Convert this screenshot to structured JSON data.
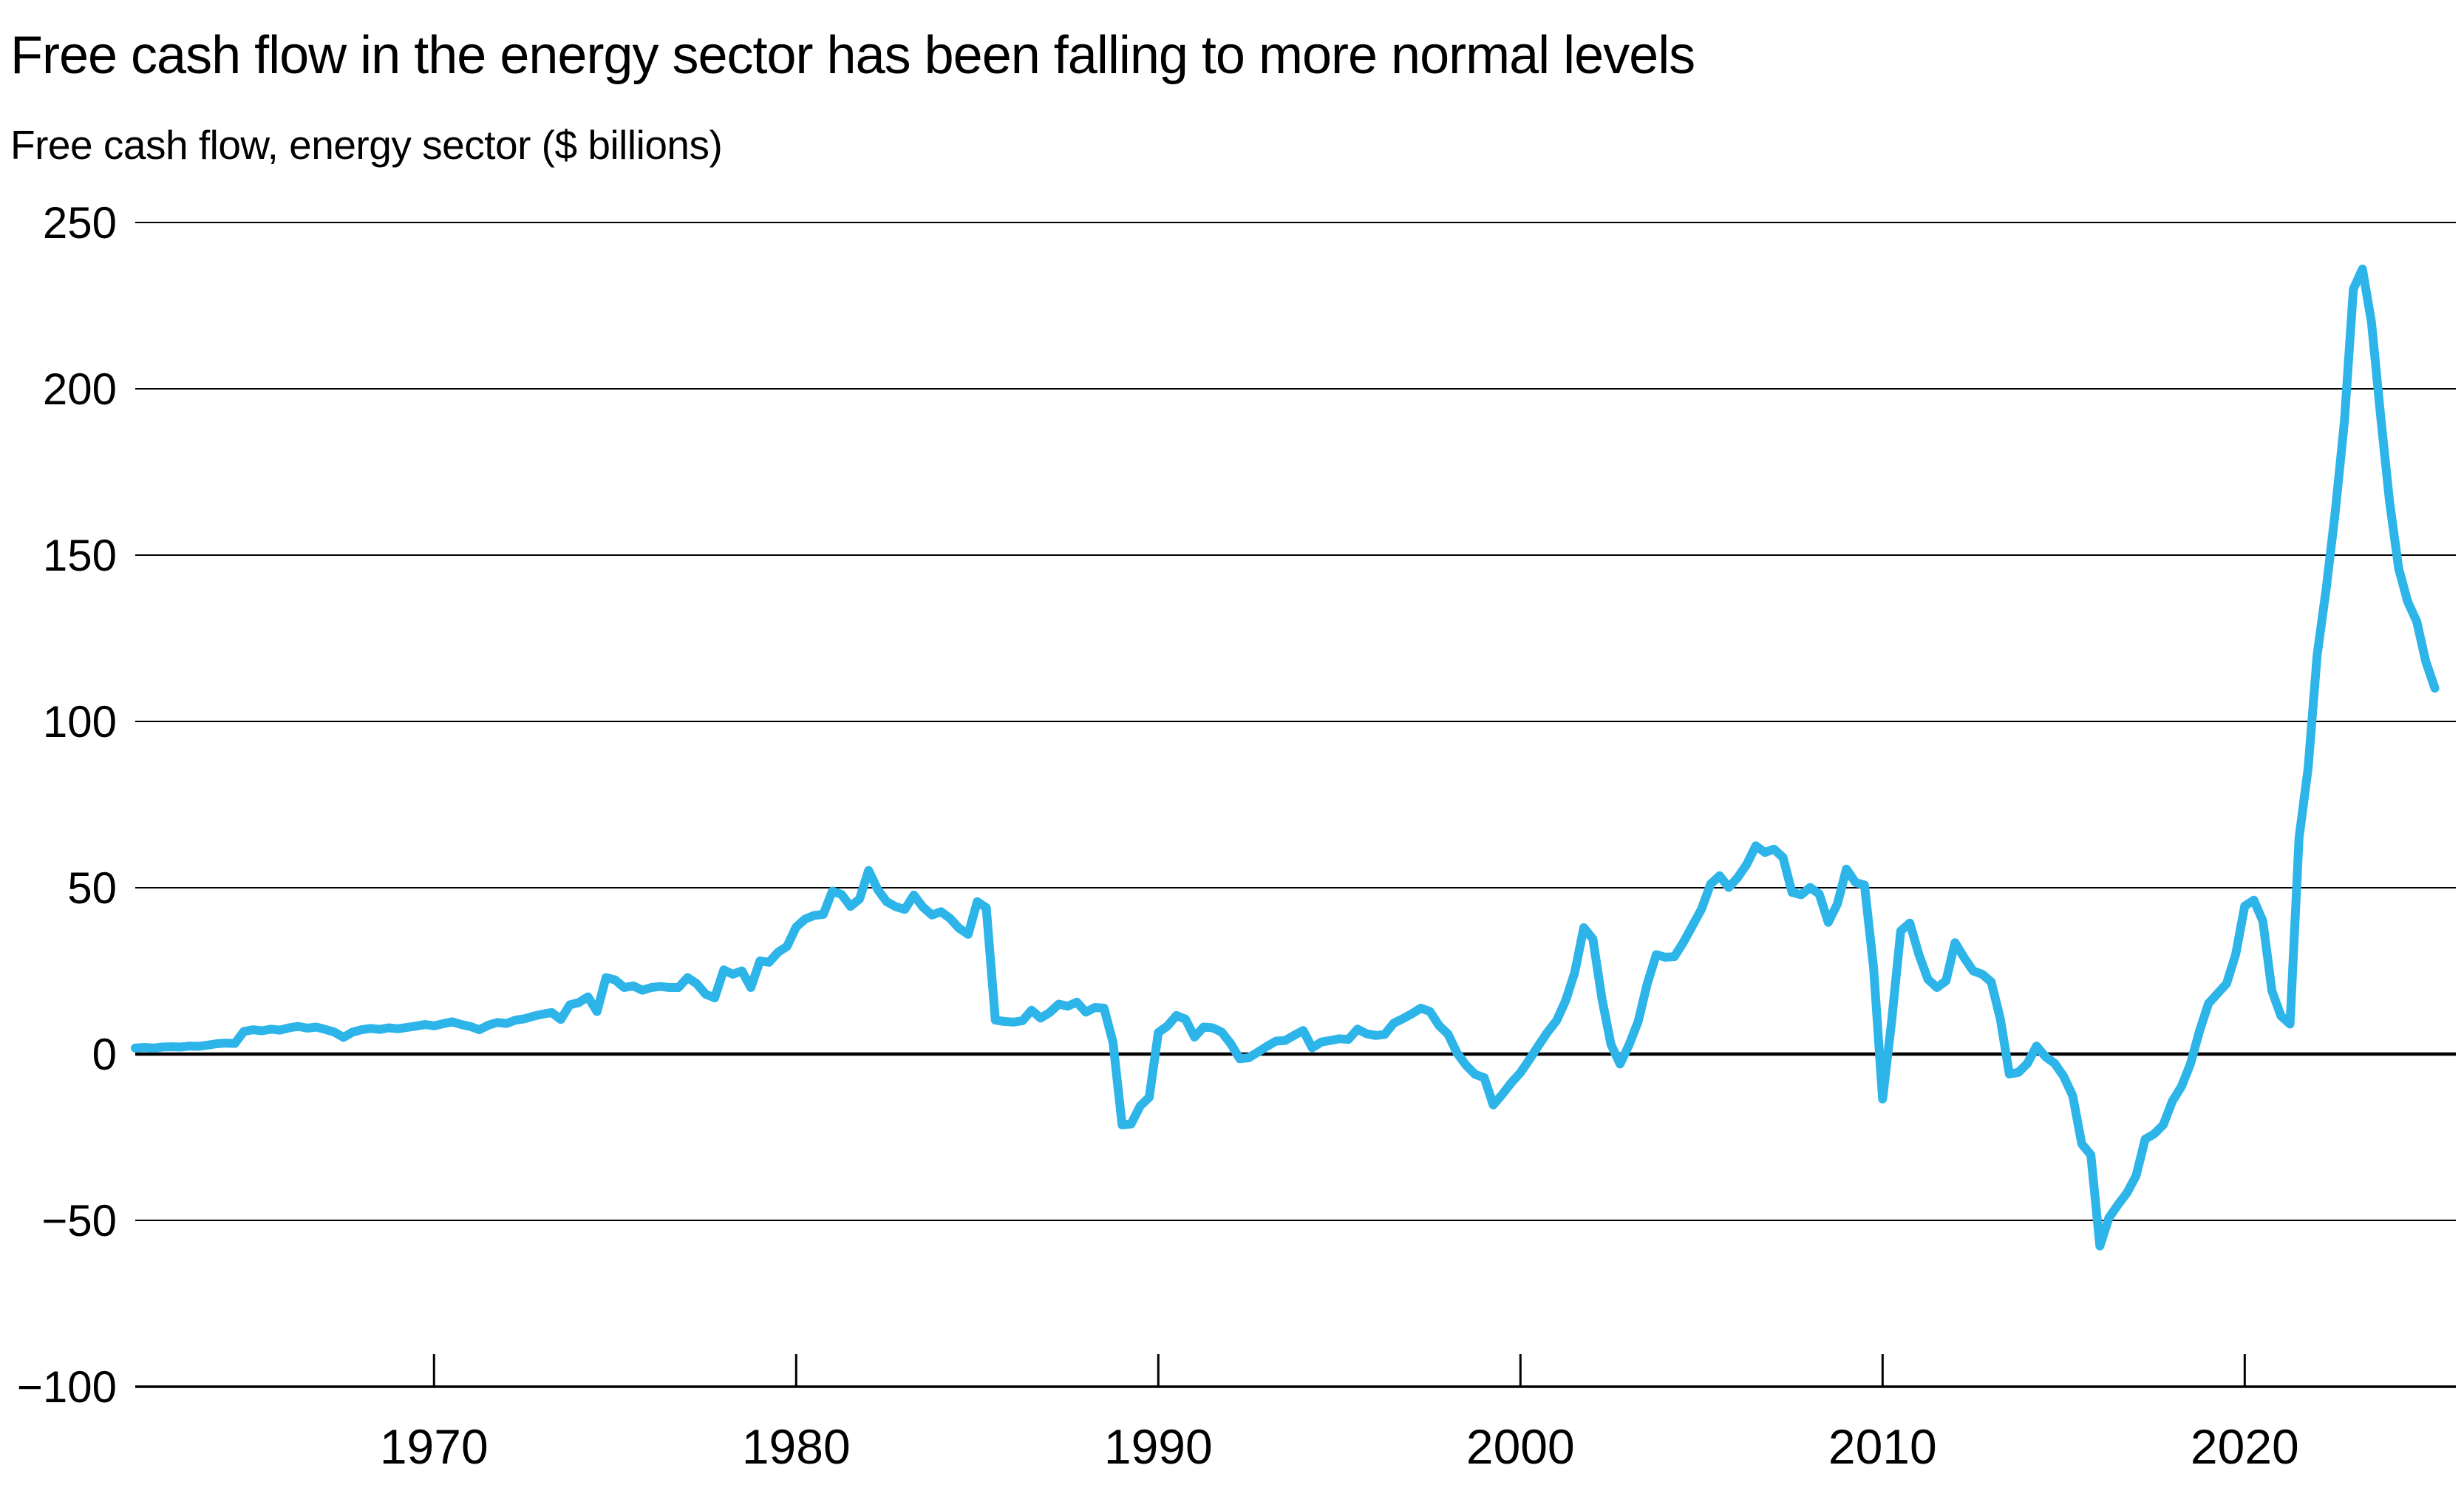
{
  "chart_data": {
    "type": "line",
    "title": "Free cash flow in the energy sector has been falling to more normal levels",
    "subtitle": "Free cash flow, energy sector ($ billions)",
    "series_name": "Free cash flow, energy sector ($ billions)",
    "line_color": "#2db4e9",
    "background_color": "#ffffff",
    "axis_color": "#000000",
    "grid": "horizontal",
    "legend": "none",
    "xlabel": "",
    "ylabel": "$ billions",
    "xlim": [
      1961.75,
      2025.83
    ],
    "ylim": [
      -100,
      250
    ],
    "y_ticks": [
      250,
      200,
      150,
      100,
      50,
      0,
      -50,
      -100
    ],
    "y_tick_labels": [
      "250",
      "200",
      "150",
      "100",
      "50",
      "0",
      "−50",
      "−100"
    ],
    "x_ticks": [
      1970,
      1980,
      1990,
      2000,
      2010,
      2020
    ],
    "x_tick_labels": [
      "1970",
      "1980",
      "1990",
      "2000",
      "2010",
      "2020"
    ],
    "x": [
      1961.75,
      1962.0,
      1962.25,
      1962.5,
      1962.75,
      1963.0,
      1963.25,
      1963.5,
      1963.75,
      1964.0,
      1964.25,
      1964.5,
      1964.75,
      1965.0,
      1965.25,
      1965.5,
      1965.75,
      1966.0,
      1966.25,
      1966.5,
      1966.75,
      1967.0,
      1967.25,
      1967.5,
      1967.75,
      1968.0,
      1968.25,
      1968.5,
      1968.75,
      1969.0,
      1969.25,
      1969.5,
      1969.75,
      1970.0,
      1970.25,
      1970.5,
      1970.75,
      1971.0,
      1971.25,
      1971.5,
      1971.75,
      1972.0,
      1972.25,
      1972.5,
      1972.75,
      1973.0,
      1973.25,
      1973.5,
      1973.75,
      1974.0,
      1974.25,
      1974.5,
      1974.75,
      1975.0,
      1975.25,
      1975.5,
      1975.75,
      1976.0,
      1976.25,
      1976.5,
      1976.75,
      1977.0,
      1977.25,
      1977.5,
      1977.75,
      1978.0,
      1978.25,
      1978.5,
      1978.75,
      1979.0,
      1979.25,
      1979.5,
      1979.75,
      1980.0,
      1980.25,
      1980.5,
      1980.75,
      1981.0,
      1981.25,
      1981.5,
      1981.75,
      1982.0,
      1982.25,
      1982.5,
      1982.75,
      1983.0,
      1983.25,
      1983.5,
      1983.75,
      1984.0,
      1984.25,
      1984.5,
      1984.75,
      1985.0,
      1985.25,
      1985.5,
      1985.75,
      1986.0,
      1986.25,
      1986.5,
      1986.75,
      1987.0,
      1987.25,
      1987.5,
      1987.75,
      1988.0,
      1988.25,
      1988.5,
      1988.75,
      1989.0,
      1989.25,
      1989.5,
      1989.75,
      1990.0,
      1990.25,
      1990.5,
      1990.75,
      1991.0,
      1991.25,
      1991.5,
      1991.75,
      1992.0,
      1992.25,
      1992.5,
      1992.75,
      1993.0,
      1993.25,
      1993.5,
      1993.75,
      1994.0,
      1994.25,
      1994.5,
      1994.75,
      1995.0,
      1995.25,
      1995.5,
      1995.75,
      1996.0,
      1996.25,
      1996.5,
      1996.75,
      1997.0,
      1997.25,
      1997.5,
      1997.75,
      1998.0,
      1998.25,
      1998.5,
      1998.75,
      1999.0,
      1999.25,
      1999.5,
      1999.75,
      2000.0,
      2000.25,
      2000.5,
      2000.75,
      2001.0,
      2001.25,
      2001.5,
      2001.75,
      2002.0,
      2002.25,
      2002.5,
      2002.75,
      2003.0,
      2003.25,
      2003.5,
      2003.75,
      2004.0,
      2004.25,
      2004.5,
      2004.75,
      2005.0,
      2005.25,
      2005.5,
      2005.75,
      2006.0,
      2006.25,
      2006.5,
      2006.75,
      2007.0,
      2007.25,
      2007.5,
      2007.75,
      2008.0,
      2008.25,
      2008.5,
      2008.75,
      2009.0,
      2009.25,
      2009.5,
      2009.75,
      2010.0,
      2010.25,
      2010.5,
      2010.75,
      2011.0,
      2011.25,
      2011.5,
      2011.75,
      2012.0,
      2012.25,
      2012.5,
      2012.75,
      2013.0,
      2013.25,
      2013.5,
      2013.75,
      2014.0,
      2014.25,
      2014.5,
      2014.75,
      2015.0,
      2015.25,
      2015.5,
      2015.75,
      2016.0,
      2016.25,
      2016.5,
      2016.75,
      2017.0,
      2017.25,
      2017.5,
      2017.75,
      2018.0,
      2018.25,
      2018.5,
      2018.75,
      2019.0,
      2019.25,
      2019.5,
      2019.75,
      2020.0,
      2020.25,
      2020.5,
      2020.75,
      2021.0,
      2021.25,
      2021.5,
      2021.75,
      2022.0,
      2022.25,
      2022.5,
      2022.75,
      2023.0,
      2023.25,
      2023.5,
      2023.75,
      2024.0,
      2024.25,
      2024.5,
      2024.75,
      2025.0,
      2025.25
    ],
    "values": [
      1.8,
      2.0,
      1.8,
      2.1,
      2.2,
      2.1,
      2.4,
      2.3,
      2.7,
      3.1,
      3.3,
      3.2,
      6.8,
      7.3,
      7.0,
      7.5,
      7.2,
      7.9,
      8.3,
      7.8,
      8.1,
      7.4,
      6.6,
      5.0,
      6.6,
      7.3,
      7.7,
      7.4,
      7.9,
      7.6,
      8.0,
      8.4,
      8.9,
      8.5,
      9.1,
      9.7,
      8.9,
      8.3,
      7.3,
      8.7,
      9.5,
      9.2,
      10.2,
      10.6,
      11.4,
      12.0,
      12.5,
      10.4,
      14.8,
      15.5,
      17.2,
      12.8,
      23.0,
      22.3,
      20.0,
      20.5,
      19.2,
      20.0,
      20.3,
      20.0,
      20.0,
      23.0,
      21.2,
      18.0,
      16.9,
      25.3,
      24.0,
      25.0,
      20.0,
      28.0,
      27.6,
      30.6,
      32.4,
      38.2,
      40.6,
      41.7,
      42.0,
      49.0,
      48.0,
      44.4,
      46.6,
      55.2,
      49.5,
      45.8,
      44.3,
      43.5,
      47.8,
      44.2,
      41.8,
      42.8,
      40.8,
      37.8,
      36.0,
      45.8,
      44.0,
      10.2,
      9.8,
      9.6,
      10.0,
      13.2,
      10.8,
      12.5,
      15.0,
      14.4,
      15.6,
      12.6,
      14.0,
      13.8,
      3.5,
      -21.3,
      -21.0,
      -15.6,
      -13.0,
      6.5,
      8.4,
      11.6,
      10.5,
      5.1,
      8.1,
      7.9,
      6.6,
      3.1,
      -1.4,
      -1.1,
      0.6,
      2.3,
      3.9,
      4.1,
      5.6,
      7.1,
      1.9,
      3.6,
      4.1,
      4.6,
      4.4,
      7.5,
      6.1,
      5.6,
      5.9,
      9.3,
      10.6,
      12.1,
      13.8,
      12.8,
      8.6,
      6.0,
      0.3,
      -3.4,
      -6.1,
      -7.1,
      -15.3,
      -12.1,
      -8.6,
      -5.6,
      -1.6,
      2.6,
      6.6,
      10.1,
      16.1,
      24.6,
      38.0,
      34.6,
      16.6,
      2.9,
      -3.0,
      2.8,
      9.8,
      21.1,
      29.9,
      29.1,
      29.3,
      33.6,
      38.6,
      43.6,
      51.1,
      53.6,
      50.1,
      53.1,
      57.1,
      62.6,
      60.6,
      61.6,
      59.1,
      48.6,
      47.9,
      50.1,
      48.1,
      39.6,
      45.1,
      55.6,
      51.6,
      50.8,
      26.0,
      -13.5,
      10.0,
      37.0,
      39.4,
      30.0,
      22.5,
      20.0,
      22.0,
      33.5,
      29.0,
      25.0,
      24.0,
      21.7,
      10.6,
      -6.0,
      -5.5,
      -2.8,
      2.4,
      -0.8,
      -2.8,
      -6.7,
      -12.6,
      -27.0,
      -30.3,
      -57.7,
      -49.2,
      -45.3,
      -41.7,
      -36.6,
      -25.6,
      -24.0,
      -21.3,
      -14.2,
      -9.8,
      -3.0,
      6.9,
      15.2,
      18.2,
      21.2,
      30.0,
      44.5,
      46.3,
      40.0,
      19.0,
      11.5,
      9.0,
      65.0,
      86.0,
      120.0,
      140.0,
      163.0,
      190.0,
      230.0,
      236.0,
      220.0,
      192.0,
      166.0,
      146.0,
      136.0,
      130.0,
      118.0,
      110.0
    ]
  }
}
